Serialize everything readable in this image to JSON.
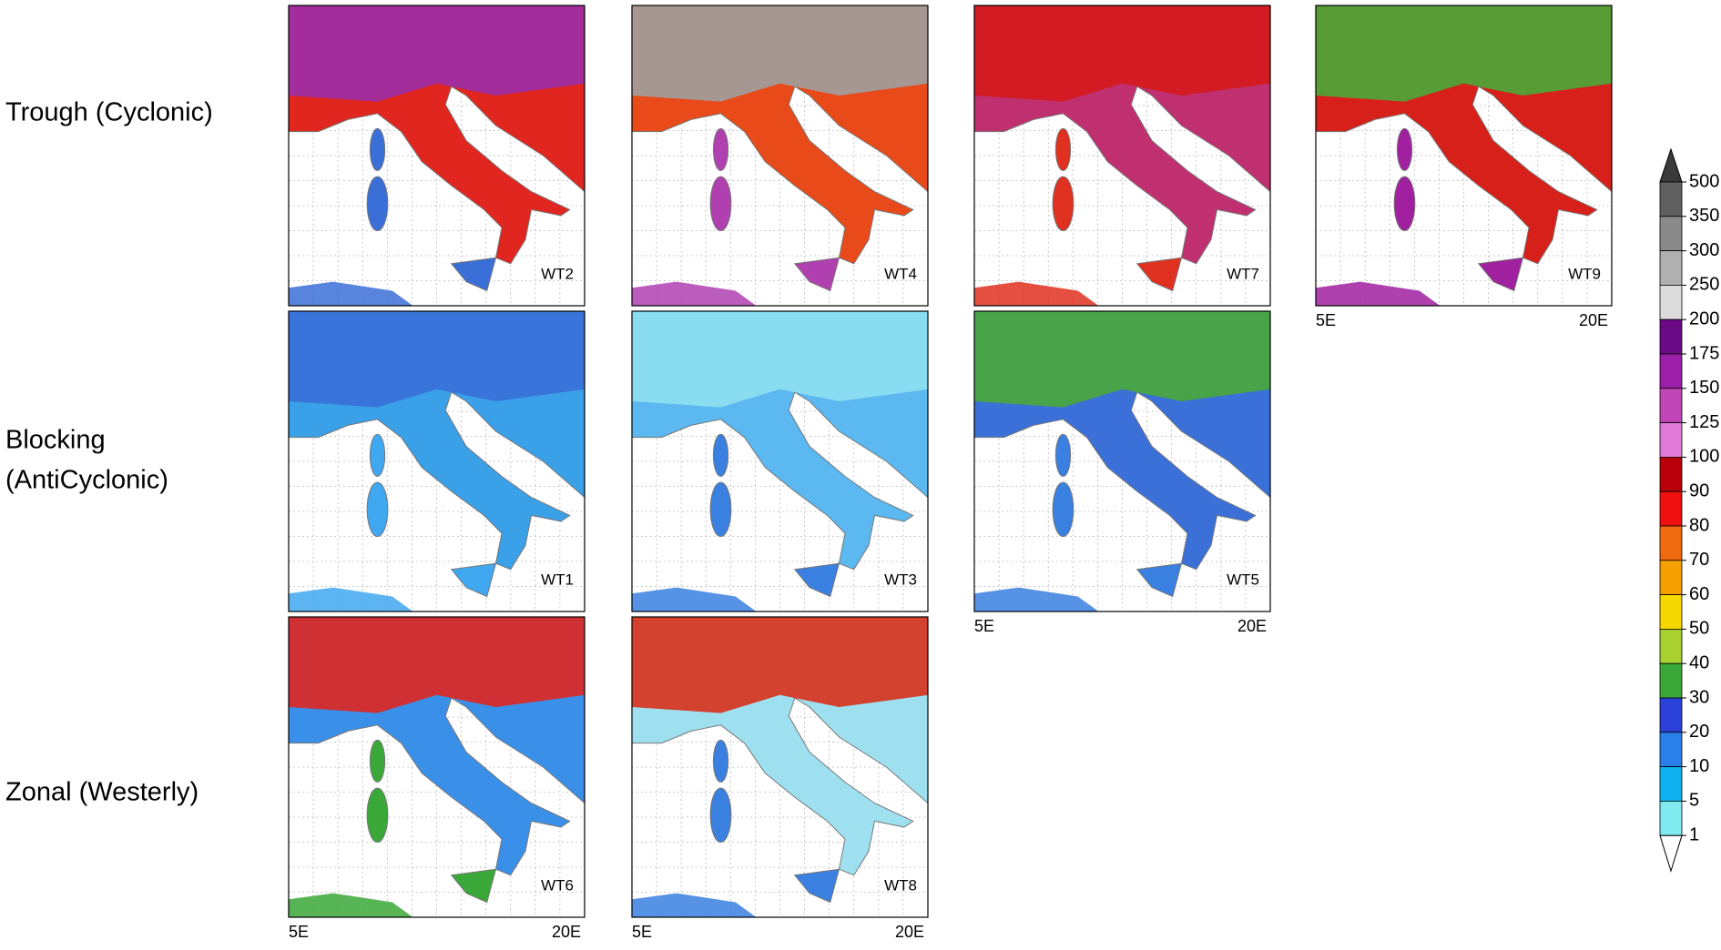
{
  "rows": [
    {
      "lines": [
        "Trough (Cyclonic)"
      ],
      "panels": [
        {
          "label": "WT2",
          "axis": false
        },
        {
          "label": "WT4",
          "axis": false
        },
        {
          "label": "WT7",
          "axis": false
        },
        {
          "label": "WT9",
          "axis": true
        }
      ]
    },
    {
      "lines": [
        "Blocking",
        "(AntiCyclonic)"
      ],
      "panels": [
        {
          "label": "WT1",
          "axis": false
        },
        {
          "label": "WT3",
          "axis": false
        },
        {
          "label": "WT5",
          "axis": true
        }
      ]
    },
    {
      "lines": [
        "Zonal (Westerly)"
      ],
      "panels": [
        {
          "label": "WT6",
          "axis": true
        },
        {
          "label": "WT8",
          "axis": true
        }
      ]
    }
  ],
  "axis_labels": {
    "left": "5E",
    "right": "20E"
  },
  "colorbar": {
    "ticks": [
      500,
      350,
      300,
      250,
      200,
      175,
      150,
      125,
      100,
      90,
      80,
      70,
      60,
      50,
      40,
      30,
      20,
      10,
      5,
      1
    ],
    "colors": [
      "#3a3a3a",
      "#606060",
      "#8a8a8a",
      "#b0b0b0",
      "#dcdcdc",
      "#6a0a86",
      "#9b1fa8",
      "#c046b8",
      "#e07ad8",
      "#b8000a",
      "#f01010",
      "#f06a10",
      "#f5a000",
      "#f5d800",
      "#a8d030",
      "#3aa838",
      "#2a40d8",
      "#2a80e8",
      "#10b0f0",
      "#80eaf0",
      "#ffffff"
    ]
  }
}
